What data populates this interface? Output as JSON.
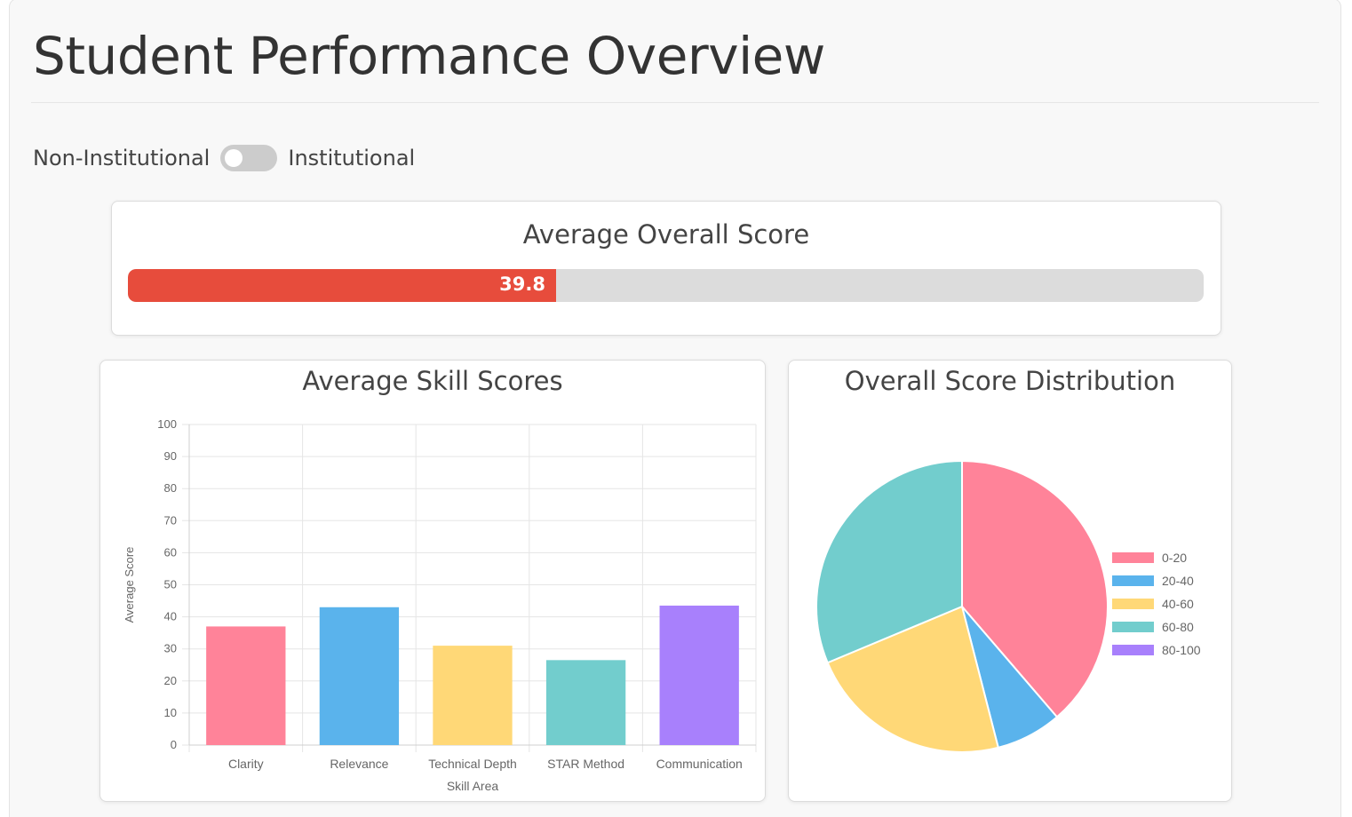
{
  "page": {
    "title": "Student Performance Overview"
  },
  "toggle": {
    "left_label": "Non-Institutional",
    "right_label": "Institutional",
    "state": "off"
  },
  "score_card": {
    "title": "Average Overall Score",
    "value": "39.8",
    "fraction": 0.398,
    "fill_color": "#e74c3c"
  },
  "skill_chart": {
    "title": "Average Skill Scores"
  },
  "distribution_chart": {
    "title": "Overall Score Distribution"
  },
  "chart_data": [
    {
      "type": "bar",
      "title": "Average Skill Scores",
      "categories": [
        "Clarity",
        "Relevance",
        "Technical Depth",
        "STAR Method",
        "Communication"
      ],
      "values": [
        37,
        43,
        31,
        26.5,
        43.5
      ],
      "colors": [
        "#ff8399",
        "#5ab3ec",
        "#ffd877",
        "#72cdcd",
        "#a880fc"
      ],
      "xlabel": "Skill Area",
      "ylabel": "Average Score",
      "ylim": [
        0,
        100
      ],
      "yticks": [
        "0",
        "10",
        "20",
        "30",
        "40",
        "50",
        "60",
        "70",
        "80",
        "90",
        "100"
      ],
      "grid": true,
      "legend": "none"
    },
    {
      "type": "pie",
      "title": "Overall Score Distribution",
      "labels": [
        "0-20",
        "20-40",
        "40-60",
        "60-80",
        "80-100"
      ],
      "values": [
        38.7,
        7.3,
        22.7,
        31.3,
        0
      ],
      "colors": [
        "#ff8399",
        "#5ab3ec",
        "#ffd877",
        "#72cdcd",
        "#a880fc"
      ],
      "legend": "right"
    }
  ]
}
